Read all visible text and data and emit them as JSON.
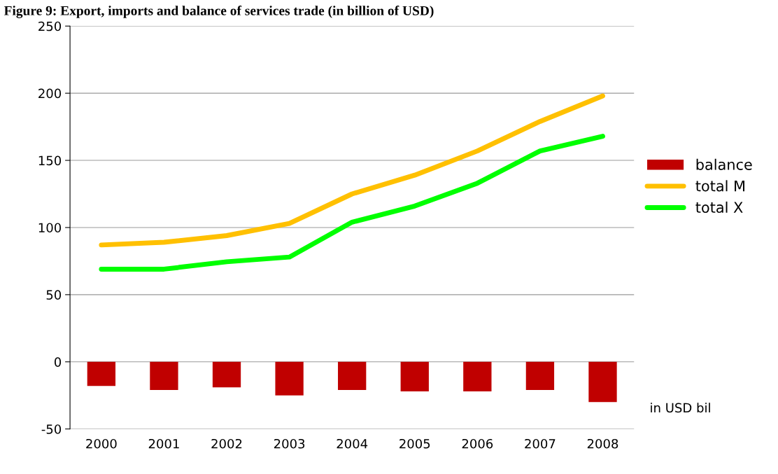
{
  "chart_data": {
    "type": "line",
    "title": "Figure 9: Export, imports and balance of services trade (in billion of USD)",
    "categories": [
      "2000",
      "2001",
      "2002",
      "2003",
      "2004",
      "2005",
      "2006",
      "2007",
      "2008"
    ],
    "series": [
      {
        "name": "balance",
        "type": "bar",
        "color": "#c00000",
        "values": [
          -18,
          -21,
          -19,
          -25,
          -21,
          -22,
          -22,
          -21,
          -30
        ]
      },
      {
        "name": "total M",
        "color": "#ffc000",
        "values": [
          87,
          89,
          94,
          103,
          125,
          139,
          157,
          179,
          198
        ]
      },
      {
        "name": "total X",
        "color": "#00ff00",
        "values": [
          69,
          69,
          74.5,
          78,
          104,
          116,
          133,
          157,
          168
        ]
      }
    ],
    "ylim": [
      -50,
      250
    ],
    "yticks": [
      -50,
      0,
      50,
      100,
      150,
      200,
      250
    ],
    "grid": "y",
    "legend": "right",
    "annotations": [
      "in USD bil"
    ]
  }
}
